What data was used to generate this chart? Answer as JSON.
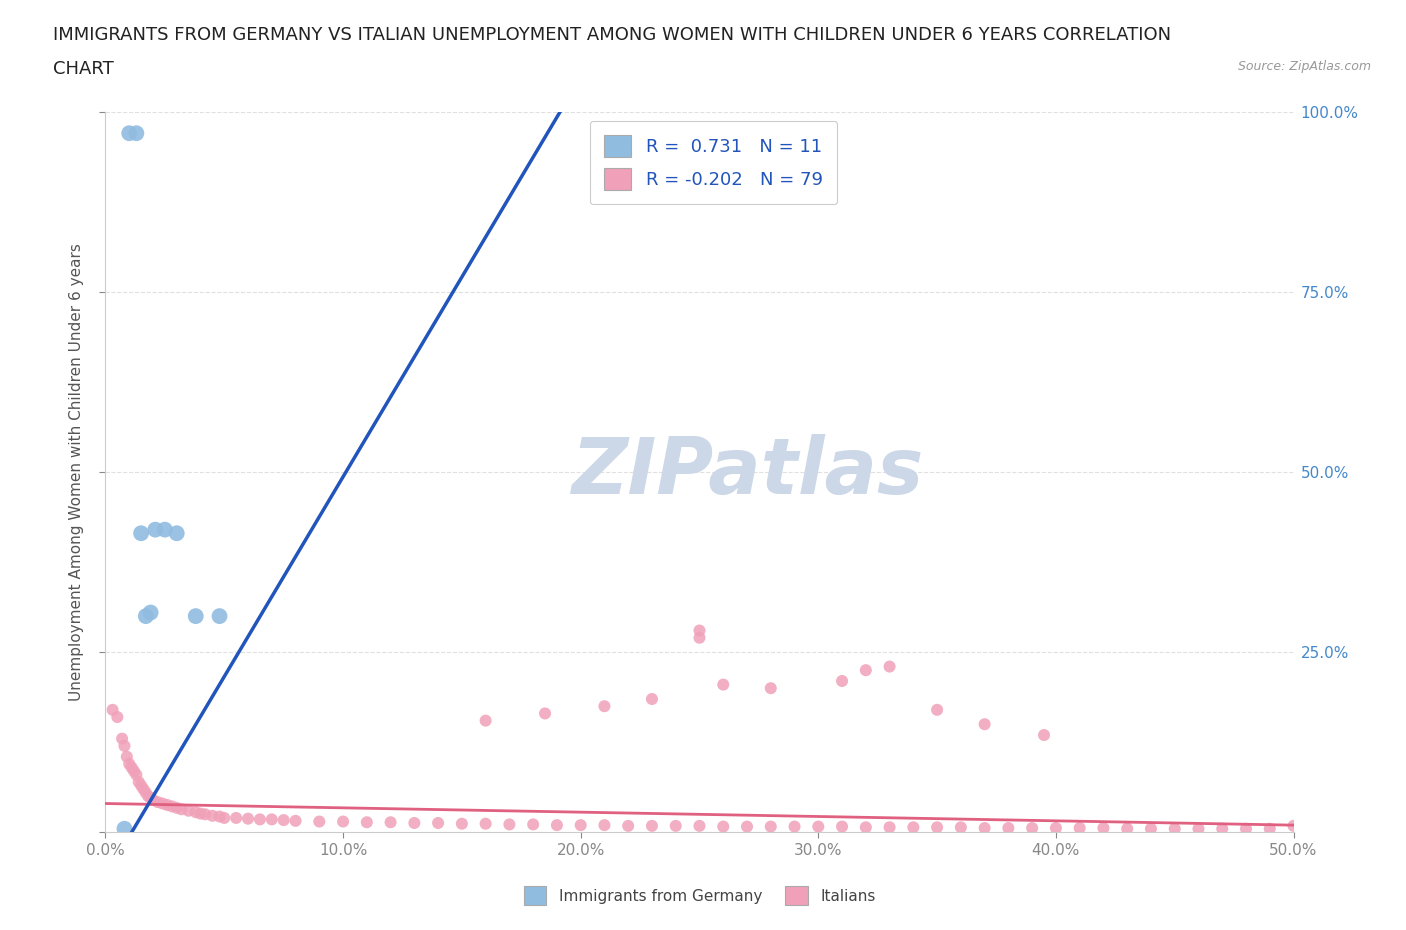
{
  "title_line1": "IMMIGRANTS FROM GERMANY VS ITALIAN UNEMPLOYMENT AMONG WOMEN WITH CHILDREN UNDER 6 YEARS CORRELATION",
  "title_line2": "CHART",
  "source_text": "Source: ZipAtlas.com",
  "ylabel": "Unemployment Among Women with Children Under 6 years",
  "xlim": [
    0,
    0.5
  ],
  "ylim": [
    0,
    1.0
  ],
  "xticks": [
    0.0,
    0.1,
    0.2,
    0.3,
    0.4,
    0.5
  ],
  "xtick_labels": [
    "0.0%",
    "10.0%",
    "20.0%",
    "30.0%",
    "40.0%",
    "50.0%"
  ],
  "yticks": [
    0.0,
    0.25,
    0.5,
    0.75,
    1.0
  ],
  "ytick_labels": [
    "",
    "25.0%",
    "50.0%",
    "75.0%",
    "100.0%"
  ],
  "legend_entries": [
    {
      "label": "Immigrants from Germany",
      "color": "#a8c8e8",
      "R": "0.731",
      "N": "11"
    },
    {
      "label": "Italians",
      "color": "#f4a8b8",
      "R": "-0.202",
      "N": "79"
    }
  ],
  "blue_scatter_x": [
    0.008,
    0.01,
    0.013,
    0.015,
    0.017,
    0.019,
    0.021,
    0.025,
    0.03,
    0.038,
    0.048
  ],
  "blue_scatter_y": [
    0.005,
    0.97,
    0.97,
    0.415,
    0.3,
    0.305,
    0.42,
    0.42,
    0.415,
    0.3,
    0.3
  ],
  "blue_line_x": [
    0.002,
    0.195
  ],
  "blue_line_y": [
    -0.05,
    1.02
  ],
  "pink_scatter_x": [
    0.003,
    0.005,
    0.007,
    0.008,
    0.009,
    0.01,
    0.011,
    0.012,
    0.013,
    0.014,
    0.015,
    0.016,
    0.017,
    0.018,
    0.019,
    0.02,
    0.022,
    0.024,
    0.026,
    0.028,
    0.03,
    0.032,
    0.035,
    0.038,
    0.04,
    0.042,
    0.045,
    0.048,
    0.05,
    0.055,
    0.06,
    0.065,
    0.07,
    0.075,
    0.08,
    0.09,
    0.1,
    0.11,
    0.12,
    0.13,
    0.14,
    0.15,
    0.16,
    0.17,
    0.18,
    0.19,
    0.2,
    0.21,
    0.22,
    0.23,
    0.24,
    0.25,
    0.26,
    0.27,
    0.28,
    0.29,
    0.3,
    0.31,
    0.32,
    0.33,
    0.34,
    0.35,
    0.36,
    0.37,
    0.38,
    0.39,
    0.4,
    0.41,
    0.42,
    0.43,
    0.44,
    0.45,
    0.46,
    0.47,
    0.48,
    0.49,
    0.5,
    0.25,
    0.33
  ],
  "pink_scatter_y": [
    0.17,
    0.16,
    0.13,
    0.12,
    0.105,
    0.095,
    0.09,
    0.085,
    0.08,
    0.07,
    0.065,
    0.06,
    0.055,
    0.05,
    0.048,
    0.045,
    0.042,
    0.04,
    0.038,
    0.036,
    0.034,
    0.032,
    0.03,
    0.028,
    0.026,
    0.025,
    0.023,
    0.022,
    0.02,
    0.02,
    0.019,
    0.018,
    0.018,
    0.017,
    0.016,
    0.015,
    0.015,
    0.014,
    0.014,
    0.013,
    0.013,
    0.012,
    0.012,
    0.011,
    0.011,
    0.01,
    0.01,
    0.01,
    0.009,
    0.009,
    0.009,
    0.009,
    0.008,
    0.008,
    0.008,
    0.008,
    0.008,
    0.008,
    0.007,
    0.007,
    0.007,
    0.007,
    0.007,
    0.006,
    0.006,
    0.006,
    0.006,
    0.006,
    0.006,
    0.005,
    0.005,
    0.005,
    0.005,
    0.005,
    0.005,
    0.005,
    0.009,
    0.27,
    0.23
  ],
  "pink_scatter_extra_x": [
    0.25,
    0.32,
    0.37,
    0.395,
    0.35,
    0.28,
    0.26,
    0.23,
    0.21,
    0.185,
    0.16,
    0.31
  ],
  "pink_scatter_extra_y": [
    0.28,
    0.225,
    0.15,
    0.135,
    0.17,
    0.2,
    0.205,
    0.185,
    0.175,
    0.165,
    0.155,
    0.21
  ],
  "pink_line_x": [
    0.0,
    0.5
  ],
  "pink_line_y": [
    0.04,
    0.01
  ],
  "background_color": "#ffffff",
  "grid_color": "#e0e0e0",
  "blue_dot_color": "#90bce0",
  "blue_line_color": "#2255bb",
  "pink_dot_color": "#f0a0b8",
  "pink_line_color": "#e06080",
  "title_fontsize": 13,
  "axis_fontsize": 11,
  "tick_fontsize": 11,
  "right_ytick_color": "#4488cc",
  "watermark_color": "#ccd8e8"
}
